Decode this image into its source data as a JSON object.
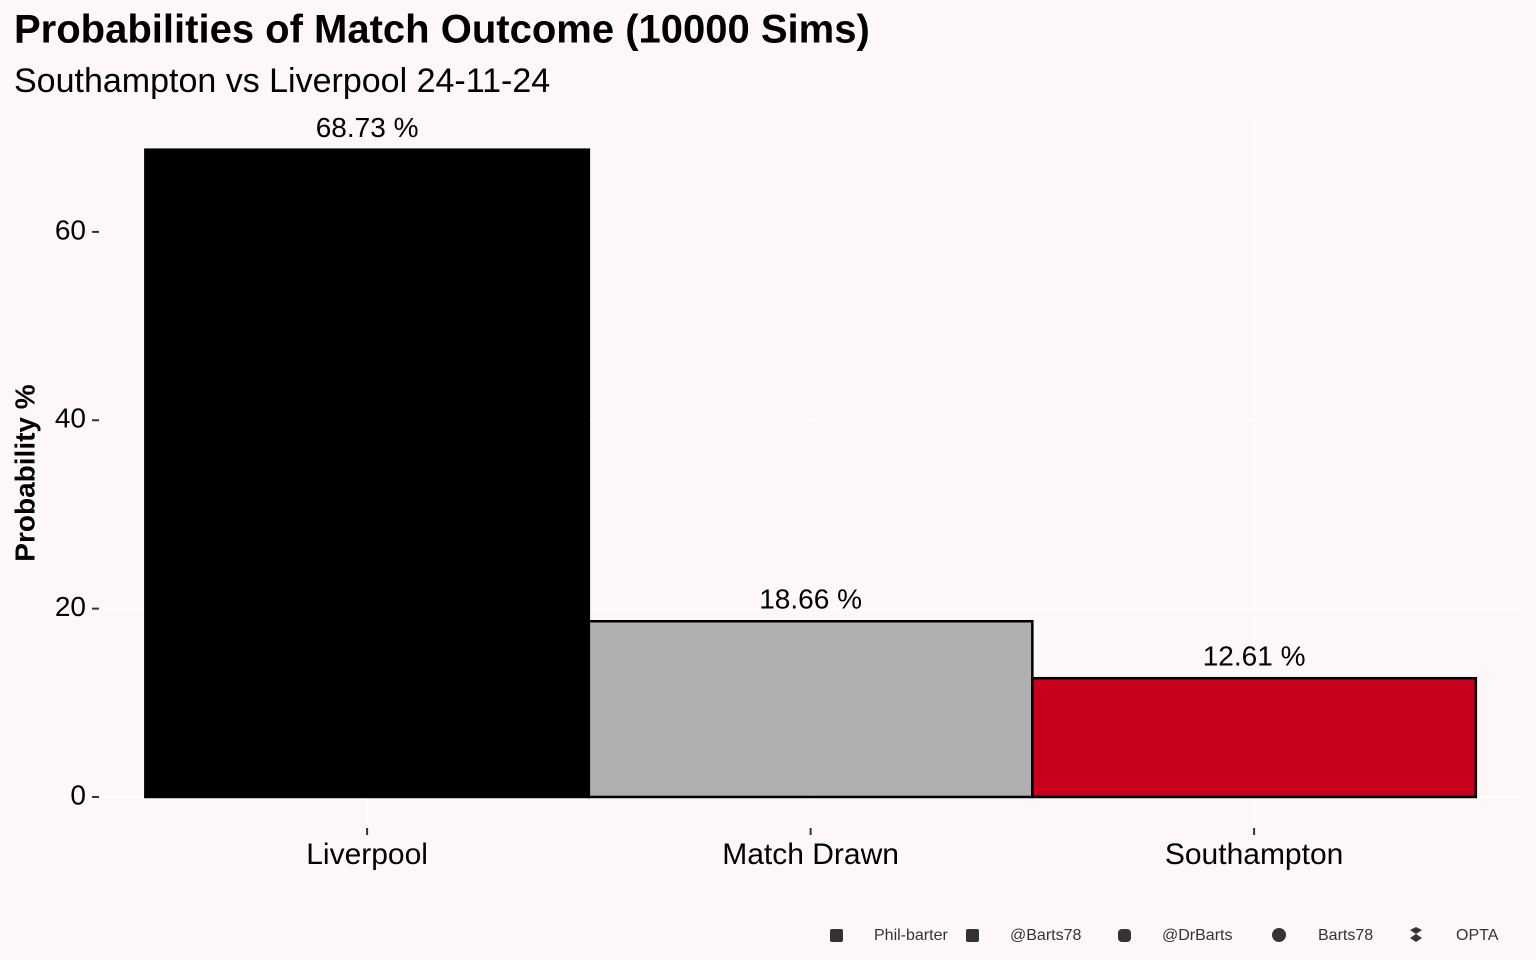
{
  "chart_data": {
    "type": "bar",
    "title": "Probabilities of Match Outcome (10000 Sims)",
    "subtitle": "Southampton vs Liverpool 24-11-24",
    "y_label": "Probability %",
    "categories": [
      "Liverpool",
      "Match Drawn",
      "Southampton"
    ],
    "values": [
      68.73,
      18.66,
      12.61
    ],
    "value_labels": [
      "68.73  %",
      "18.66  %",
      "12.61  %"
    ],
    "colors": [
      "#000000",
      "#b0b0b0",
      "#c8001e"
    ],
    "ylim": [
      -3.4,
      72.2
    ],
    "yticks": [
      0,
      20,
      40,
      60
    ],
    "grid": true,
    "caption": [
      "Phil-barter",
      "@Barts78",
      "@DrBarts",
      "Barts78",
      "OPTA"
    ]
  }
}
